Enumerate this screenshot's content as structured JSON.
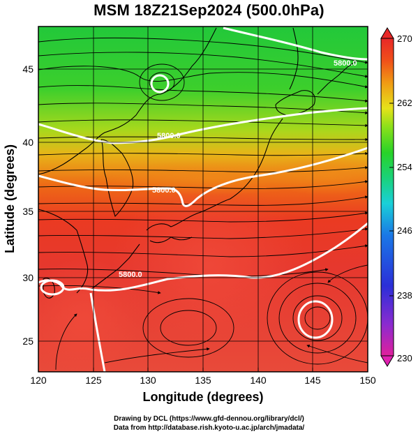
{
  "title": "MSM 18Z21Sep2024 (500.0hPa)",
  "x_axis": {
    "label": "Longitude (degrees)",
    "range": [
      120,
      150
    ],
    "ticks": [
      120,
      125,
      130,
      135,
      140,
      145,
      150
    ]
  },
  "y_axis": {
    "label": "Latitude  (degrees)",
    "range": [
      22.4,
      47.6
    ],
    "ticks": [
      25,
      30,
      35,
      40,
      45
    ]
  },
  "colorbar": {
    "min": 230,
    "max": 270,
    "labels": [
      "270",
      "262",
      "254",
      "246",
      "238",
      "230"
    ],
    "colors": [
      "#e0209c",
      "#8a2bd0",
      "#2b2fd8",
      "#1a78e6",
      "#1ad0d8",
      "#1ad27a",
      "#28d228",
      "#8ae01a",
      "#e6e21a",
      "#f09a14",
      "#f0501a",
      "#e82828"
    ]
  },
  "contours": [
    {
      "label": "5800.0"
    },
    {
      "label": "5800.0"
    },
    {
      "label": "5800.0"
    },
    {
      "label": "5800.0"
    }
  ],
  "credits": {
    "line1": "Drawing by DCL (https://www.gfd-dennou.org/library/dcl/)",
    "line2": "Data from http://database.rish.kyoto-u.ac.jp/arch/jmadata/"
  }
}
